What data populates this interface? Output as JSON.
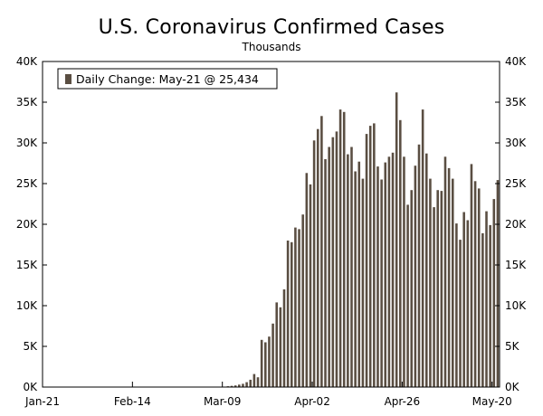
{
  "chart_data": {
    "type": "bar",
    "title": "U.S. Coronavirus Confirmed Cases",
    "subtitle": "Thousands",
    "legend": "Daily Change: May-21 @ 25,434",
    "legend_position": "top-left",
    "colors": {
      "bar": "#5a4e42",
      "axis": "#000000",
      "background": "#ffffff"
    },
    "ylim": [
      0,
      40000
    ],
    "y_ticks": [
      0,
      5000,
      10000,
      15000,
      20000,
      25000,
      30000,
      35000,
      40000
    ],
    "y_tick_labels": [
      "0K",
      "5K",
      "10K",
      "15K",
      "20K",
      "25K",
      "30K",
      "35K",
      "40K"
    ],
    "x_tick_labels": [
      "Jan-21",
      "Feb-14",
      "Mar-09",
      "Apr-02",
      "Apr-26",
      "May-20"
    ],
    "x_tick_day_index": [
      0,
      24,
      48,
      72,
      96,
      120
    ],
    "start_date": "Jan-21",
    "days": 122,
    "values": [
      0,
      0,
      0,
      0,
      0,
      0,
      0,
      0,
      0,
      0,
      0,
      0,
      0,
      0,
      0,
      0,
      0,
      0,
      0,
      0,
      0,
      0,
      0,
      0,
      0,
      0,
      0,
      0,
      0,
      0,
      0,
      0,
      0,
      0,
      0,
      0,
      0,
      0,
      0,
      0,
      0,
      0,
      0,
      0,
      0,
      0,
      0,
      0,
      0,
      100,
      150,
      200,
      300,
      400,
      600,
      900,
      1600,
      1200,
      5800,
      5500,
      6200,
      7800,
      10400,
      9800,
      12000,
      18000,
      17800,
      19600,
      19400,
      21200,
      26300,
      24900,
      30300,
      31700,
      33300,
      28000,
      29500,
      30700,
      31400,
      34100,
      33800,
      28600,
      29500,
      26500,
      27700,
      25600,
      31100,
      32100,
      32400,
      27100,
      25500,
      27600,
      28300,
      28800,
      36200,
      32800,
      28300,
      22400,
      24200,
      27200,
      29800,
      34100,
      28700,
      25600,
      22100,
      24200,
      24100,
      28300,
      26900,
      25600,
      20100,
      18100,
      21500,
      20500,
      27400,
      25300,
      24400,
      18900,
      21600,
      19900,
      23100,
      25434
    ]
  }
}
